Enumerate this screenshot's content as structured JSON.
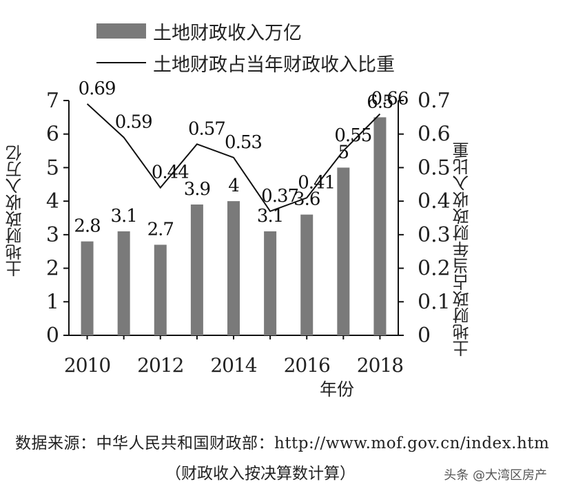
{
  "chart_data": {
    "type": "bar",
    "x": [
      "2010",
      "2011",
      "2012",
      "2013",
      "2014",
      "2015",
      "2016",
      "2017",
      "2018"
    ],
    "x_tick_labels": [
      "2010",
      "2012",
      "2014",
      "2016",
      "2018"
    ],
    "series": [
      {
        "name": "土地财政收入万亿",
        "type": "bar",
        "axis": "left",
        "values": [
          2.8,
          3.1,
          2.7,
          3.9,
          4.0,
          3.1,
          3.6,
          5.0,
          6.5
        ],
        "labels": [
          "2.8",
          "3.1",
          "2.7",
          "3.9",
          "4",
          "3.1",
          "3.6",
          "5",
          "6.5"
        ]
      },
      {
        "name": "土地财政占当年财政收入比重",
        "type": "line",
        "axis": "right",
        "values": [
          0.69,
          0.59,
          0.44,
          0.57,
          0.53,
          0.37,
          0.41,
          0.55,
          0.66
        ],
        "labels": [
          "0.69",
          "0.59",
          "0.44",
          "0.57",
          "0.53",
          "0.37",
          "0.41",
          "0.55",
          "0.66"
        ]
      }
    ],
    "xlabel": "年份",
    "ylabel": "土地财政收入万亿",
    "ylabel_right": "土地财政占当年财政收入比重",
    "ylim": [
      0,
      7
    ],
    "ylim_right": [
      0,
      0.7
    ],
    "yticks": [
      "0",
      "1",
      "2",
      "3",
      "4",
      "5",
      "6",
      "7"
    ],
    "yticks_right": [
      "0",
      "0.1",
      "0.2",
      "0.3",
      "0.4",
      "0.5",
      "0.6",
      "0.7"
    ],
    "legend": "top",
    "grid": false
  },
  "colors": {
    "bar": "#7a7a7a",
    "line": "#111111"
  },
  "source_text": "数据来源：中华人民共和国财政部：http://www.mof.gov.cn/index.htm",
  "note_text": "（财政收入按决算数计算）",
  "watermark": "头条 @大湾区房产"
}
